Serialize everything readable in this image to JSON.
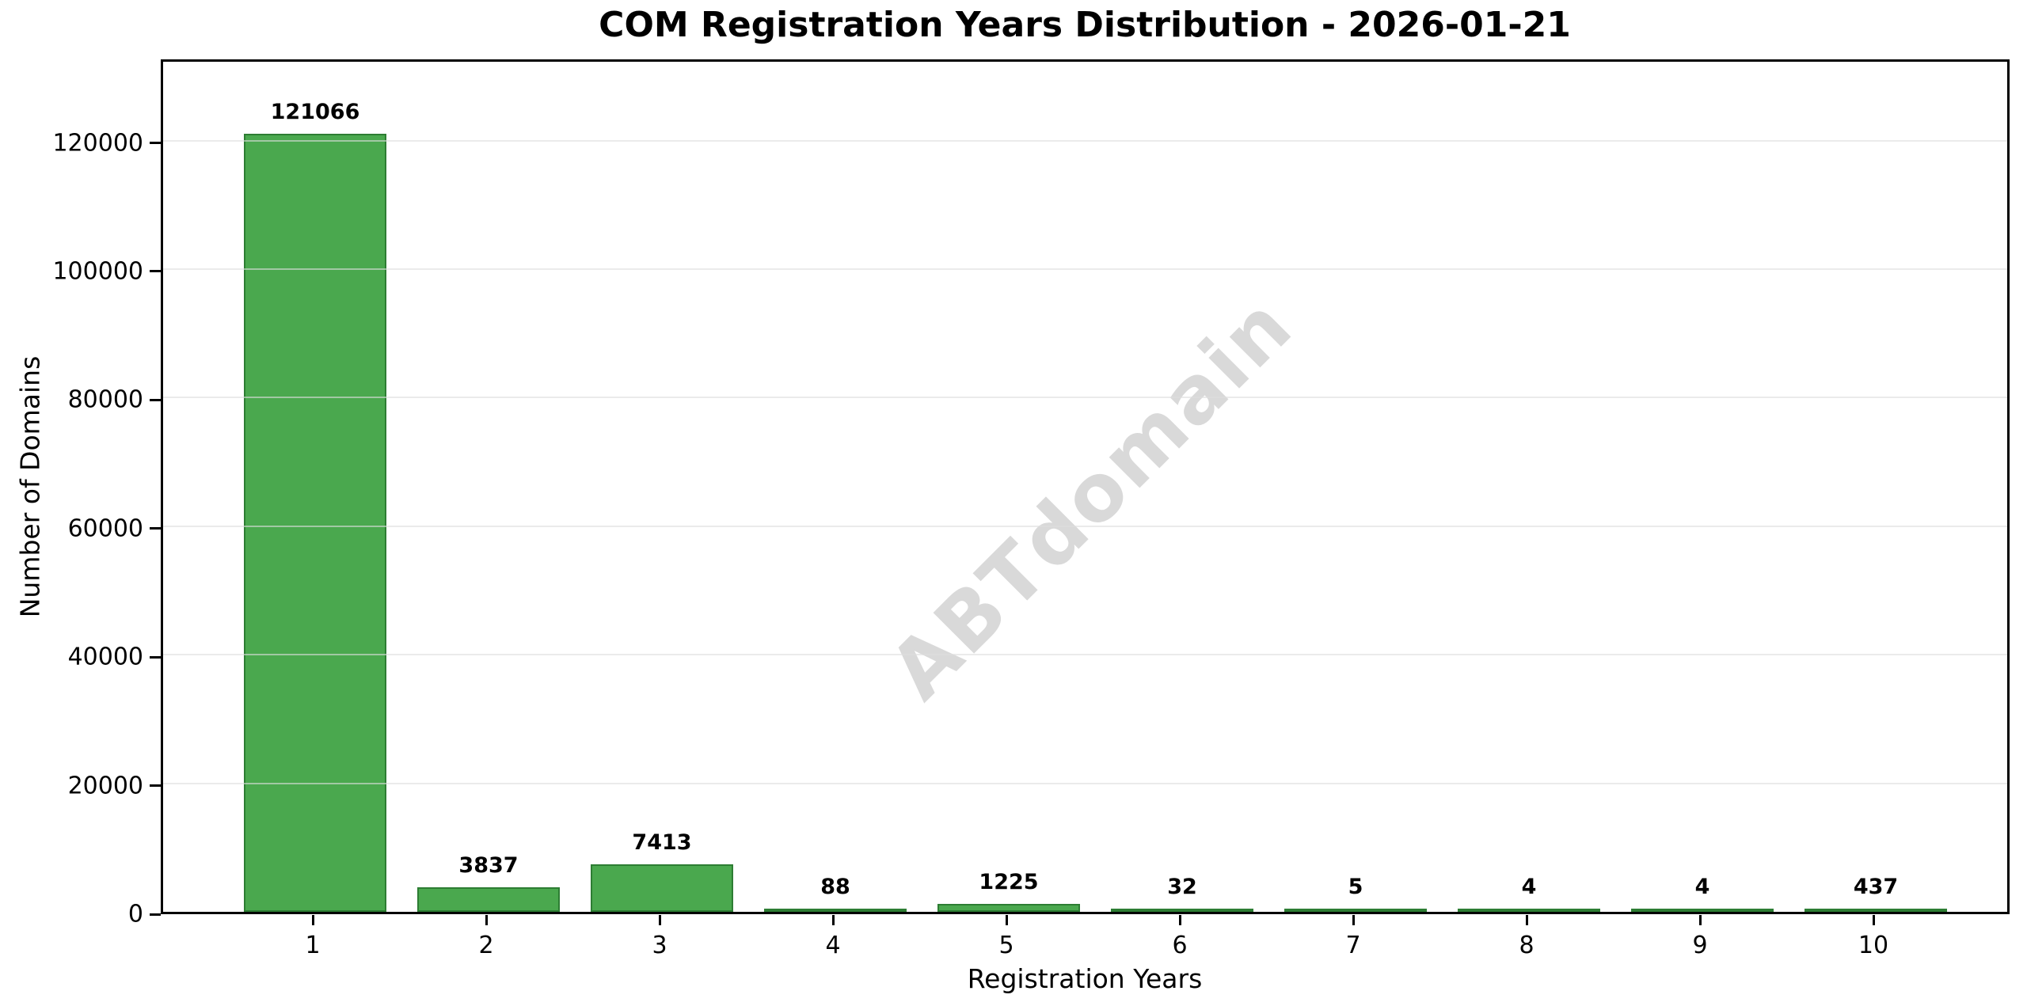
{
  "chart_data": {
    "type": "bar",
    "title": "COM Registration Years Distribution - 2026-01-21",
    "xlabel": "Registration Years",
    "ylabel": "Number of Domains",
    "categories": [
      "1",
      "2",
      "3",
      "4",
      "5",
      "6",
      "7",
      "8",
      "9",
      "10"
    ],
    "values": [
      121066,
      3837,
      7413,
      88,
      1225,
      32,
      5,
      4,
      4,
      437
    ],
    "bar_labels": [
      "121066",
      "3837",
      "7413",
      "88",
      "1225",
      "32",
      "5",
      "4",
      "4",
      "437"
    ],
    "y_ticks": [
      0,
      20000,
      40000,
      60000,
      80000,
      100000,
      120000
    ],
    "y_tick_labels": [
      "0",
      "20000",
      "40000",
      "60000",
      "80000",
      "100000",
      "120000"
    ],
    "ylim": [
      0,
      133000
    ],
    "grid": "horizontal",
    "legend_position": "none",
    "watermark": "ABTdomain",
    "colors": {
      "bar_fill": "#4aa84e",
      "bar_edge": "#2d7d33",
      "gridline": "rgba(222,222,222,0.6)",
      "watermark": "#d9d9d9",
      "text": "#000000",
      "background": "#ffffff"
    }
  }
}
